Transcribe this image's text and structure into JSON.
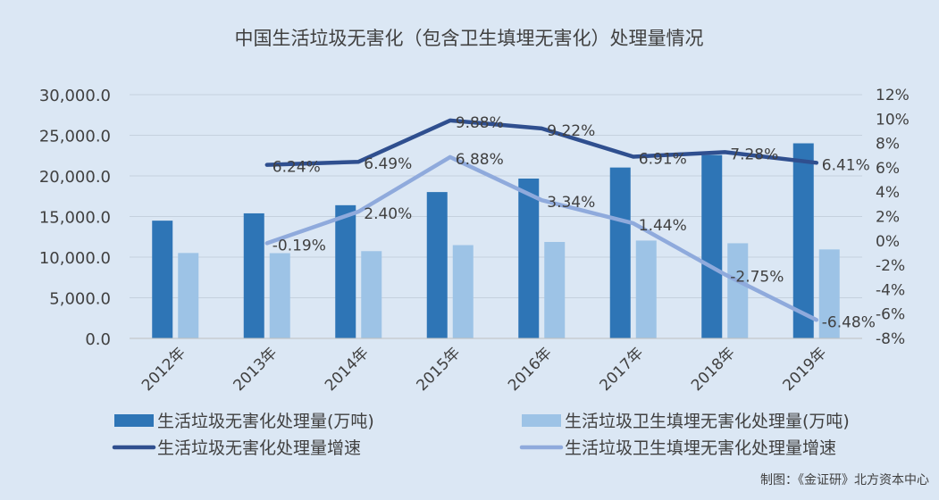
{
  "chart_data": {
    "type": "bar",
    "title": "中国生活垃圾无害化（包含卫生填埋无害化）处理量情况",
    "categories": [
      "2012年",
      "2013年",
      "2014年",
      "2015年",
      "2016年",
      "2017年",
      "2018年",
      "2019年"
    ],
    "bar_series": [
      {
        "name": "生活垃圾无害化处理量(万吨)",
        "values": [
          14490,
          15390,
          16390,
          18010,
          19670,
          21030,
          22570,
          24010
        ],
        "color": "#2e75b6"
      },
      {
        "name": "生活垃圾卫生填埋无害化处理量(万吨)",
        "values": [
          10510,
          10490,
          10740,
          11480,
          11870,
          12040,
          11710,
          10950
        ],
        "color": "#9dc3e6"
      }
    ],
    "line_series": [
      {
        "name": "生活垃圾无害化处理量增速",
        "values": [
          null,
          6.24,
          6.49,
          9.88,
          9.22,
          6.91,
          7.28,
          6.41
        ],
        "labels": [
          "",
          "6.24%",
          "6.49%",
          "9.88%",
          "9.22%",
          "6.91%",
          "7.28%",
          "6.41%"
        ],
        "color": "#2f4f8f"
      },
      {
        "name": "生活垃圾卫生填埋无害化处理量增速",
        "values": [
          null,
          -0.19,
          2.4,
          6.88,
          3.34,
          1.44,
          -2.75,
          -6.48
        ],
        "labels": [
          "",
          "-0.19%",
          "2.40%",
          "6.88%",
          "3.34%",
          "1.44%",
          "-2.75%",
          "-6.48%"
        ],
        "color": "#8faadc"
      }
    ],
    "y_left": {
      "min": 0,
      "max": 30000,
      "ticks": [
        {
          "v": 0,
          "label": "0.0"
        },
        {
          "v": 5000,
          "label": "5,000.0"
        },
        {
          "v": 10000,
          "label": "10,000.0"
        },
        {
          "v": 15000,
          "label": "15,000.0"
        },
        {
          "v": 20000,
          "label": "20,000.0"
        },
        {
          "v": 25000,
          "label": "25,000.0"
        },
        {
          "v": 30000,
          "label": "30,000.0"
        }
      ]
    },
    "y_right": {
      "min": -8,
      "max": 12,
      "ticks": [
        {
          "v": 12,
          "label": "12%"
        },
        {
          "v": 10,
          "label": "10%"
        },
        {
          "v": 8,
          "label": "8%"
        },
        {
          "v": 6,
          "label": "6%"
        },
        {
          "v": 4,
          "label": "4%"
        },
        {
          "v": 2,
          "label": "2%"
        },
        {
          "v": 0,
          "label": "0%"
        },
        {
          "v": -2,
          "label": "-2%"
        },
        {
          "v": -4,
          "label": "-4%"
        },
        {
          "v": -6,
          "label": "-6%"
        },
        {
          "v": -8,
          "label": "-8%"
        }
      ]
    },
    "grid": true,
    "legend_position": "bottom"
  },
  "source": "制图：《金证研》北方资本中心"
}
